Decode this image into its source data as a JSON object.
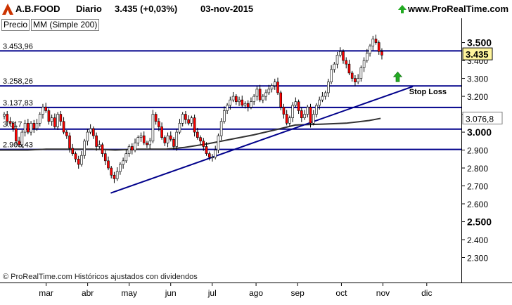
{
  "header": {
    "symbol": "A.B.FOOD",
    "period": "Diario",
    "last": "3.435 (+0,03%)",
    "date": "03-nov-2015",
    "site": "www.ProRealTime.com"
  },
  "indicators": {
    "price_label": "Precio",
    "ma_label": "MM (Simple 200)"
  },
  "copyright": "© ProRealTime.com Históricos ajustados con dividendos",
  "colors": {
    "line": "#00008b",
    "ma": "#333333",
    "up": "#ffffff",
    "down": "#ff0000",
    "arrow": "#22aa22"
  },
  "chart_data": {
    "type": "candlestick",
    "ylim": [
      2.2,
      3.62
    ],
    "yticks": [
      {
        "value": 2.3,
        "label": "2.300"
      },
      {
        "value": 2.4,
        "label": "2.400"
      },
      {
        "value": 2.5,
        "label": "2.500"
      },
      {
        "value": 2.6,
        "label": "2.600"
      },
      {
        "value": 2.7,
        "label": "2.700"
      },
      {
        "value": 2.8,
        "label": "2.800"
      },
      {
        "value": 2.9,
        "label": "2.900"
      },
      {
        "value": 3.0,
        "label": "3.000"
      },
      {
        "value": 3.1,
        "label": "3.100"
      },
      {
        "value": 3.2,
        "label": "3.200"
      },
      {
        "value": 3.3,
        "label": "3.300"
      },
      {
        "value": 3.4,
        "label": "3.400"
      },
      {
        "value": 3.5,
        "label": "3.500"
      }
    ],
    "bold_ticks": [
      2.5,
      3.0,
      3.5
    ],
    "price_tag": {
      "value": 3.435,
      "label": "3.435"
    },
    "ma_tag": {
      "value": 3.0768,
      "label": "3.076,8"
    },
    "months": [
      {
        "label": "mar",
        "t": 0.1
      },
      {
        "label": "abr",
        "t": 0.19
      },
      {
        "label": "may",
        "t": 0.28
      },
      {
        "label": "jun",
        "t": 0.37
      },
      {
        "label": "jul",
        "t": 0.46
      },
      {
        "label": "ago",
        "t": 0.555
      },
      {
        "label": "sep",
        "t": 0.645
      },
      {
        "label": "oct",
        "t": 0.74
      },
      {
        "label": "nov",
        "t": 0.83
      },
      {
        "label": "dic",
        "t": 0.925
      }
    ],
    "levels": [
      {
        "value": 3.45396,
        "label": "3.453,96"
      },
      {
        "value": 3.25826,
        "label": "3.258,26"
      },
      {
        "value": 3.13783,
        "label": "3.137,83"
      },
      {
        "value": 3.017,
        "label": "3.017"
      },
      {
        "value": 2.90343,
        "label": "2.903,43"
      }
    ],
    "trendline": {
      "t1": 0.24,
      "v1": 2.66,
      "t2": 0.895,
      "v2": 3.255
    },
    "annotation": {
      "text": "Stop Loss",
      "t": 0.893,
      "v": 3.228
    },
    "arrow": {
      "t": 0.862,
      "v": 3.305
    },
    "close": [
      3.1,
      3.06,
      3.05,
      3.02,
      2.95,
      2.93,
      3.0,
      3.05,
      3.0,
      3.05,
      3.02,
      3.05,
      3.1,
      3.14,
      3.12,
      3.06,
      3.08,
      3.03,
      3.1,
      3.06,
      3.0,
      2.98,
      2.91,
      2.88,
      2.85,
      2.82,
      2.87,
      2.95,
      3.0,
      3.02,
      2.98,
      2.92,
      2.93,
      2.88,
      2.84,
      2.8,
      2.76,
      2.74,
      2.78,
      2.82,
      2.84,
      2.88,
      2.92,
      2.9,
      2.94,
      2.97,
      2.98,
      2.94,
      2.93,
      2.95,
      3.1,
      3.06,
      3.03,
      2.97,
      2.94,
      2.98,
      2.96,
      2.92,
      3.0,
      3.05,
      3.1,
      3.07,
      3.05,
      3.08,
      3.0,
      2.97,
      2.95,
      2.92,
      2.88,
      2.86,
      2.86,
      2.9,
      2.98,
      3.06,
      3.12,
      3.15,
      3.18,
      3.2,
      3.17,
      3.18,
      3.15,
      3.16,
      3.14,
      3.17,
      3.2,
      3.24,
      3.18,
      3.2,
      3.22,
      3.24,
      3.26,
      3.28,
      3.22,
      3.14,
      3.1,
      3.05,
      3.08,
      3.15,
      3.17,
      3.12,
      3.08,
      3.1,
      3.14,
      3.05,
      3.1,
      3.15,
      3.18,
      3.2,
      3.22,
      3.28,
      3.35,
      3.38,
      3.43,
      3.45,
      3.4,
      3.38,
      3.33,
      3.3,
      3.28,
      3.3,
      3.36,
      3.4,
      3.44,
      3.48,
      3.52,
      3.5,
      3.45,
      3.43
    ],
    "ma200": [
      [
        0.0,
        2.9
      ],
      [
        0.06,
        2.9
      ],
      [
        0.1,
        2.905
      ],
      [
        0.15,
        2.905
      ],
      [
        0.2,
        2.905
      ],
      [
        0.25,
        2.9
      ],
      [
        0.3,
        2.905
      ],
      [
        0.36,
        2.905
      ],
      [
        0.4,
        2.915
      ],
      [
        0.45,
        2.935
      ],
      [
        0.5,
        2.96
      ],
      [
        0.55,
        2.985
      ],
      [
        0.6,
        3.015
      ],
      [
        0.64,
        3.04
      ],
      [
        0.7,
        3.045
      ],
      [
        0.75,
        3.05
      ],
      [
        0.8,
        3.065
      ],
      [
        0.825,
        3.077
      ]
    ]
  }
}
